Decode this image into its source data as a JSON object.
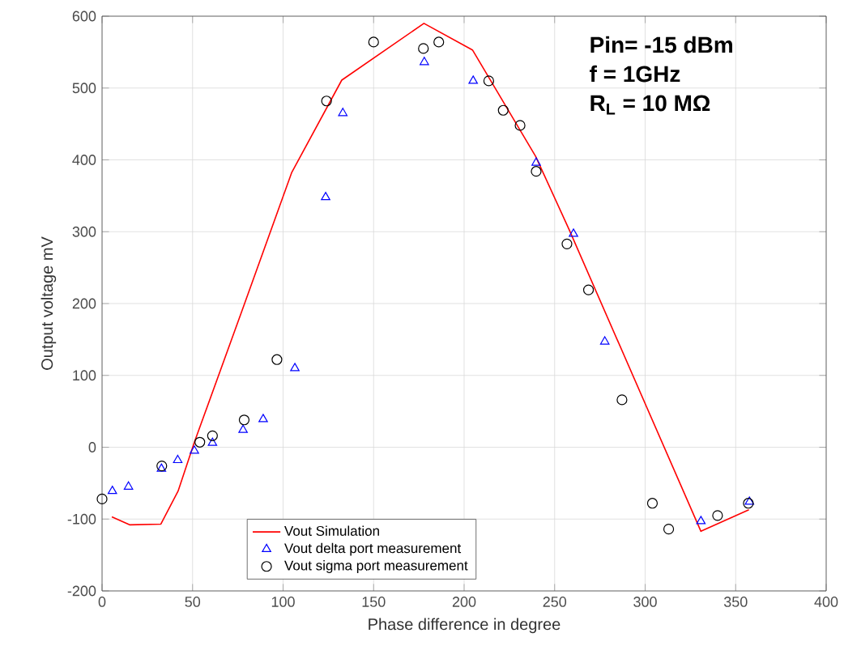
{
  "chart_data": {
    "type": "scatter",
    "xlabel": "Phase difference in degree",
    "ylabel": "Output voltage mV",
    "xlim": [
      0,
      400
    ],
    "xticks": [
      0,
      50,
      100,
      150,
      200,
      250,
      300,
      350,
      400
    ],
    "ylim": [
      -200,
      600
    ],
    "yticks": [
      -200,
      -100,
      0,
      100,
      200,
      300,
      400,
      500,
      600
    ],
    "grid": true,
    "legend": "bottom",
    "annotations": [
      "Pin= -15 dBm",
      "f =  1GHz",
      "R$_{L}$ = 10 MΩ"
    ],
    "series": [
      {
        "name": "Vout Simulation",
        "type": "line",
        "marker": "none",
        "line_style": "solid",
        "color": "#ff0000",
        "x": [
          5.4,
          15.2,
          32.5,
          42,
          51,
          78,
          104.7,
          132.4,
          177.8,
          204.6,
          239.5,
          258,
          330.8,
          357.3
        ],
        "values": [
          -97,
          -108,
          -107,
          -61,
          7,
          195,
          382,
          511,
          590,
          553,
          405,
          303,
          -117,
          -87
        ]
      },
      {
        "name": "Vout delta port measurement",
        "marker": "triangle",
        "color": "#0000ff",
        "x": [
          5.7,
          14.6,
          32.8,
          41.8,
          51,
          61,
          77.9,
          89,
          106.5,
          123.5,
          133,
          178,
          205,
          239.8,
          260.4,
          277.7,
          330.8,
          357.6
        ],
        "values": [
          -61,
          -55,
          -30,
          -18,
          -5,
          6,
          24,
          39,
          110,
          348,
          465,
          536,
          510,
          396,
          297,
          147,
          -103,
          -76
        ]
      },
      {
        "name": "Vout sigma port measurement",
        "marker": "circle",
        "color": "#000000",
        "x": [
          0,
          33,
          54,
          61,
          78.5,
          96.6,
          124,
          150,
          177.5,
          186,
          213.6,
          221.6,
          230.9,
          239.8,
          256.8,
          268.7,
          287.2,
          304,
          313,
          340,
          357
        ],
        "values": [
          -72,
          -26,
          7,
          16,
          38,
          122,
          482,
          564,
          555,
          564,
          510,
          469,
          448,
          384,
          283,
          219,
          66,
          -78,
          -114,
          -95,
          -78
        ]
      }
    ]
  }
}
